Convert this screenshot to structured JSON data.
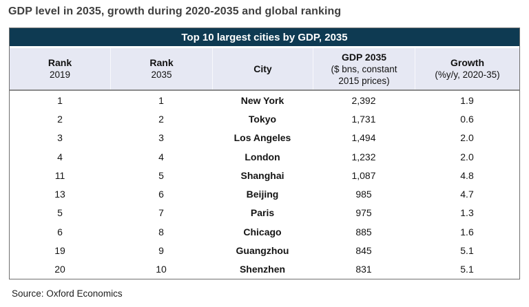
{
  "page": {
    "title": "GDP level in 2035, growth during 2020-2035 and global ranking",
    "source": "Source: Oxford Economics"
  },
  "table": {
    "title": "Top 10 largest cities by GDP, 2035",
    "columns": [
      {
        "line1": "Rank",
        "line2": "2019"
      },
      {
        "line1": "Rank",
        "line2": "2035"
      },
      {
        "line1": "City",
        "line2": ""
      },
      {
        "line1": "GDP 2035",
        "line2": "($ bns, constant 2015 prices)"
      },
      {
        "line1": "Growth",
        "line2": "(%y/y, 2020-35)"
      }
    ],
    "rows": [
      {
        "rank2019": "1",
        "rank2035": "1",
        "city": "New York",
        "gdp": "2,392",
        "growth": "1.9"
      },
      {
        "rank2019": "2",
        "rank2035": "2",
        "city": "Tokyo",
        "gdp": "1,731",
        "growth": "0.6"
      },
      {
        "rank2019": "3",
        "rank2035": "3",
        "city": "Los Angeles",
        "gdp": "1,494",
        "growth": "2.0"
      },
      {
        "rank2019": "4",
        "rank2035": "4",
        "city": "London",
        "gdp": "1,232",
        "growth": "2.0"
      },
      {
        "rank2019": "11",
        "rank2035": "5",
        "city": "Shanghai",
        "gdp": "1,087",
        "growth": "4.8"
      },
      {
        "rank2019": "13",
        "rank2035": "6",
        "city": "Beijing",
        "gdp": "985",
        "growth": "4.7"
      },
      {
        "rank2019": "5",
        "rank2035": "7",
        "city": "Paris",
        "gdp": "975",
        "growth": "1.3"
      },
      {
        "rank2019": "6",
        "rank2035": "8",
        "city": "Chicago",
        "gdp": "885",
        "growth": "1.6"
      },
      {
        "rank2019": "19",
        "rank2035": "9",
        "city": "Guangzhou",
        "gdp": "845",
        "growth": "5.1"
      },
      {
        "rank2019": "20",
        "rank2035": "10",
        "city": "Shenzhen",
        "gdp": "831",
        "growth": "5.1"
      }
    ]
  },
  "colors": {
    "header_bar_bg": "#0e3a52",
    "header_row_bg": "#e6e8f3",
    "outer_border": "#6f6f6f",
    "title_text": "#3f3f3f"
  },
  "chart_data": {
    "type": "table",
    "title": "Top 10 largest cities by GDP, 2035",
    "columns": [
      "Rank 2019",
      "Rank 2035",
      "City",
      "GDP 2035 ($ bns, constant 2015 prices)",
      "Growth (%y/y, 2020-35)"
    ],
    "rows": [
      [
        1,
        1,
        "New York",
        2392,
        1.9
      ],
      [
        2,
        2,
        "Tokyo",
        1731,
        0.6
      ],
      [
        3,
        3,
        "Los Angeles",
        1494,
        2.0
      ],
      [
        4,
        4,
        "London",
        1232,
        2.0
      ],
      [
        11,
        5,
        "Shanghai",
        1087,
        4.8
      ],
      [
        13,
        6,
        "Beijing",
        985,
        4.7
      ],
      [
        5,
        7,
        "Paris",
        975,
        1.3
      ],
      [
        6,
        8,
        "Chicago",
        885,
        1.6
      ],
      [
        19,
        9,
        "Guangzhou",
        845,
        5.1
      ],
      [
        20,
        10,
        "Shenzhen",
        831,
        5.1
      ]
    ],
    "source": "Source: Oxford Economics"
  }
}
